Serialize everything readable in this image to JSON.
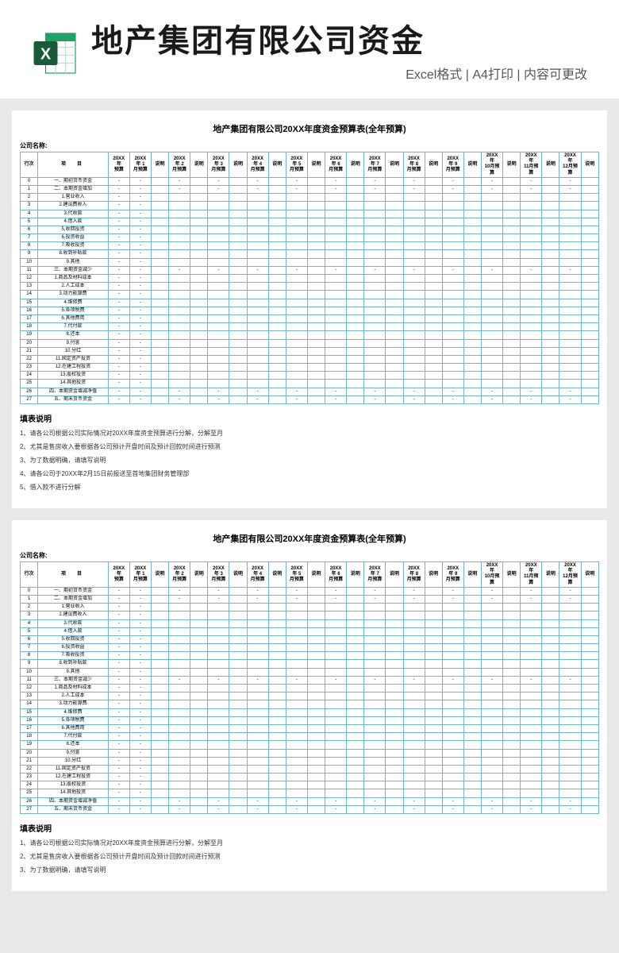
{
  "header": {
    "main_title": "地产集团有限公司资金",
    "sub_title": "Excel格式 | A4打印 | 内容可更改",
    "icon_color_dark": "#185c37",
    "icon_color_light": "#21a366"
  },
  "sheet": {
    "title": "地产集团有限公司20XX年度资金预算表(全年预算)",
    "company_label": "公司名称:",
    "col_num_header": "行次",
    "col_item_header": "项　目",
    "year_budget_header": "20XX\n年\n预算",
    "month_headers": [
      "20XX\n年 1\n月预算",
      "20XX\n年 2\n月预算",
      "20XX\n年 3\n月预算",
      "20XX\n年 4\n月预算",
      "20XX\n年 5\n月预算",
      "20XX\n年 6\n月预算",
      "20XX\n年 7\n月预算",
      "20XX\n年 8\n月预算",
      "20XX\n年 9\n月预算",
      "20XX\n年\n10月预\n算",
      "20XX\n年\n11月预\n算",
      "20XX\n年\n12月预\n算"
    ],
    "note_header": "说明",
    "rows": [
      {
        "n": "0",
        "item": "一、期初货币资金",
        "section": true
      },
      {
        "n": "1",
        "item": "二、本期资金增加",
        "section": true
      },
      {
        "n": "2",
        "item": "1.营业收入"
      },
      {
        "n": "3",
        "item": "2.建设费收入"
      },
      {
        "n": "4",
        "item": "3.代收款"
      },
      {
        "n": "5",
        "item": "4.借入款"
      },
      {
        "n": "6",
        "item": "5.收回投资"
      },
      {
        "n": "7",
        "item": "6.投资收益"
      },
      {
        "n": "8",
        "item": "7.吸收投资"
      },
      {
        "n": "9",
        "item": "8.收到补贴款"
      },
      {
        "n": "10",
        "item": "9.其他"
      },
      {
        "n": "11",
        "item": "三、本期资金减少",
        "section": true
      },
      {
        "n": "12",
        "item": "1.商品及材料成本"
      },
      {
        "n": "13",
        "item": "2.人工成本"
      },
      {
        "n": "14",
        "item": "3.动力能源费"
      },
      {
        "n": "15",
        "item": "4.维修费"
      },
      {
        "n": "16",
        "item": "5.各项税费"
      },
      {
        "n": "17",
        "item": "6.其他费用"
      },
      {
        "n": "18",
        "item": "7.代付款"
      },
      {
        "n": "19",
        "item": "8.还本"
      },
      {
        "n": "20",
        "item": "9.付息"
      },
      {
        "n": "21",
        "item": "10.分红"
      },
      {
        "n": "22",
        "item": "11.固定资产投资"
      },
      {
        "n": "23",
        "item": "12.在建工程投资"
      },
      {
        "n": "24",
        "item": "13.股权投资"
      },
      {
        "n": "25",
        "item": "14.其他投资"
      },
      {
        "n": "26",
        "item": "四、本期资金增减净值",
        "section": true
      },
      {
        "n": "27",
        "item": "五、期末货币资金",
        "section": true
      }
    ],
    "instructions_title": "填表说明",
    "instructions": [
      "1、请各公司根据公司实际情况对20XX年度资金预算进行分解，分解至月",
      "2、尤其是售房收入要根据各公司预计开盘时间及预计回款时间进行预测",
      "3、为了数据明确，请填写说明",
      "4、请各公司于20XX年2月15日前报送至首地集团财务管理部",
      "5、借入款不进行分解"
    ],
    "instructions_short_count": 3
  },
  "style": {
    "bg": "#e8e8e8",
    "sheet_bg": "#ffffff",
    "border_color": "#6db8d0",
    "dash": "-"
  }
}
